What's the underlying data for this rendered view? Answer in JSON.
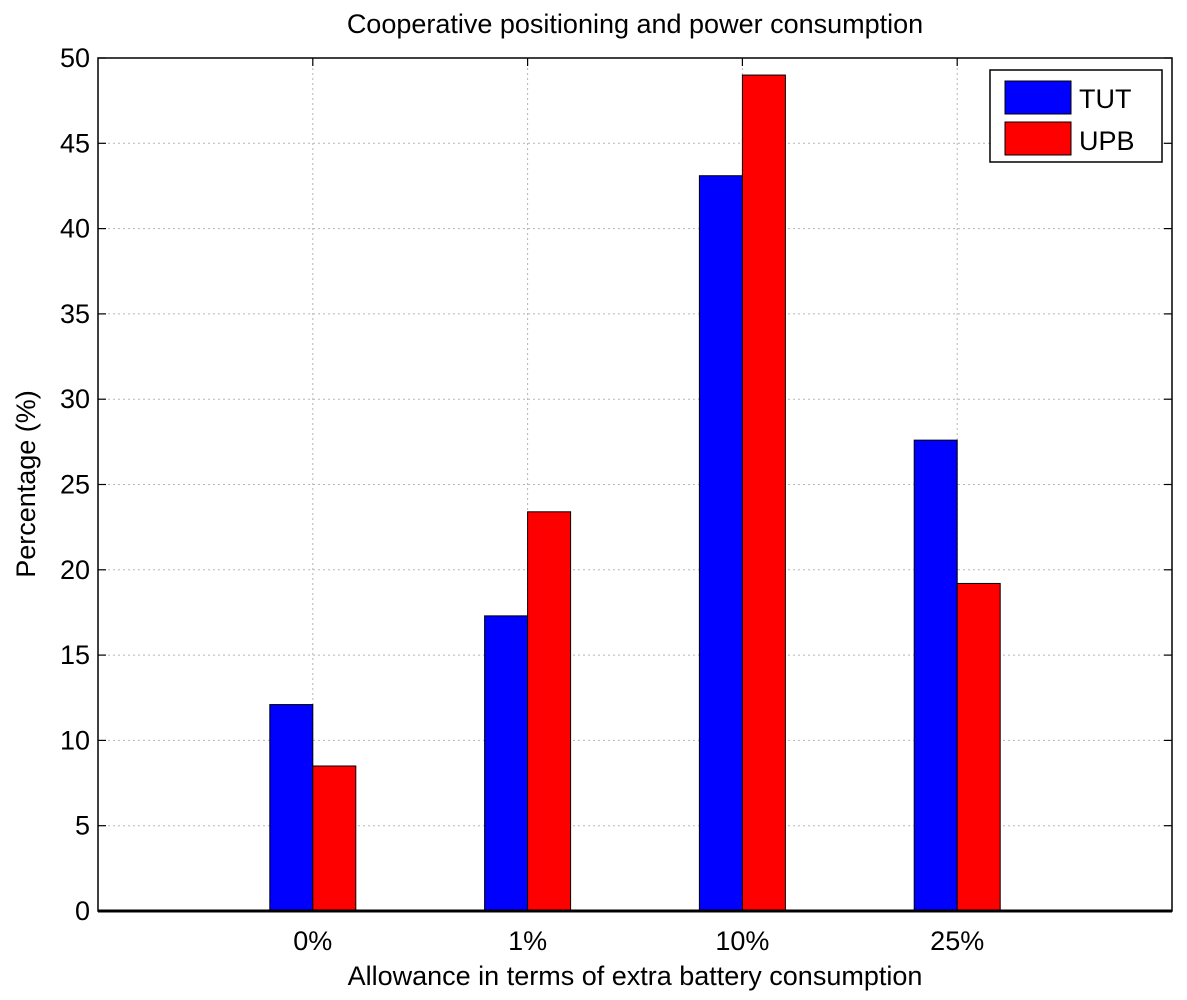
{
  "chart_data": {
    "type": "bar",
    "title": "Cooperative positioning and power consumption",
    "xlabel": "Allowance in terms of extra battery consumption",
    "ylabel": "Percentage (%)",
    "categories": [
      "0%",
      "1%",
      "10%",
      "25%"
    ],
    "series": [
      {
        "name": "TUT",
        "color": "#0000ff",
        "values": [
          12.1,
          17.3,
          43.1,
          27.6
        ]
      },
      {
        "name": "UPB",
        "color": "#ff0000",
        "values": [
          8.5,
          23.4,
          49.0,
          19.2
        ]
      }
    ],
    "ylim": [
      0,
      50
    ],
    "yticks": [
      0,
      5,
      10,
      15,
      20,
      25,
      30,
      35,
      40,
      45,
      50
    ],
    "grid": true,
    "legend_position": "top-right"
  }
}
